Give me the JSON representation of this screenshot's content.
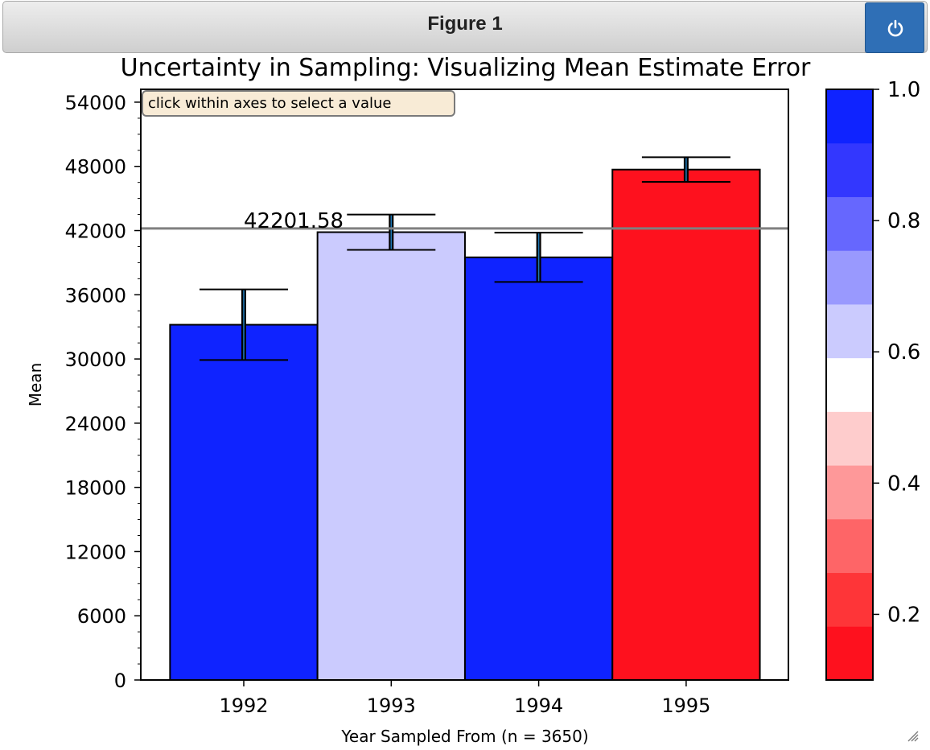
{
  "window": {
    "title": "Figure 1",
    "power_icon": "power-icon",
    "resize_icon": "resize-grip-icon"
  },
  "chart_data": {
    "type": "bar",
    "title": "Uncertainty in Sampling: Visualizing Mean Estimate Error",
    "xlabel": "Year Sampled From (n = 3650)",
    "ylabel": "Mean",
    "categories": [
      "1992",
      "1993",
      "1994",
      "1995"
    ],
    "values": [
      33200,
      41850,
      39500,
      47700
    ],
    "errors": [
      3300,
      1650,
      2300,
      1150
    ],
    "bar_colors": [
      "#0f23ff",
      "#cbcbfe",
      "#0f23ff",
      "#fe111e"
    ],
    "ylim": [
      0,
      55200
    ],
    "yticks": [
      0,
      6000,
      12000,
      18000,
      24000,
      30000,
      36000,
      42000,
      48000,
      54000
    ],
    "ytick_labels": [
      "0",
      "6000",
      "12000",
      "18000",
      "24000",
      "30000",
      "36000",
      "42000",
      "48000",
      "54000"
    ],
    "y_minor_step": 1500,
    "reference_line": {
      "value": 42201.58,
      "label": "42201.58",
      "color": "#808080"
    },
    "annotation": "click within axes to select a value",
    "colorbar": {
      "range": [
        0.1,
        1.0
      ],
      "ticks": [
        0.2,
        0.4,
        0.6,
        0.8,
        1.0
      ],
      "tick_labels": [
        "0.2",
        "0.4",
        "0.6",
        "0.8",
        "1.0"
      ],
      "colors": [
        "#fe111e",
        "#fe3538",
        "#fe6567",
        "#fe9899",
        "#fecccc",
        "#ffffff",
        "#cbcbfe",
        "#9999fe",
        "#6667fe",
        "#3337fe",
        "#0f23ff"
      ]
    },
    "grid": false,
    "legend": "none"
  }
}
